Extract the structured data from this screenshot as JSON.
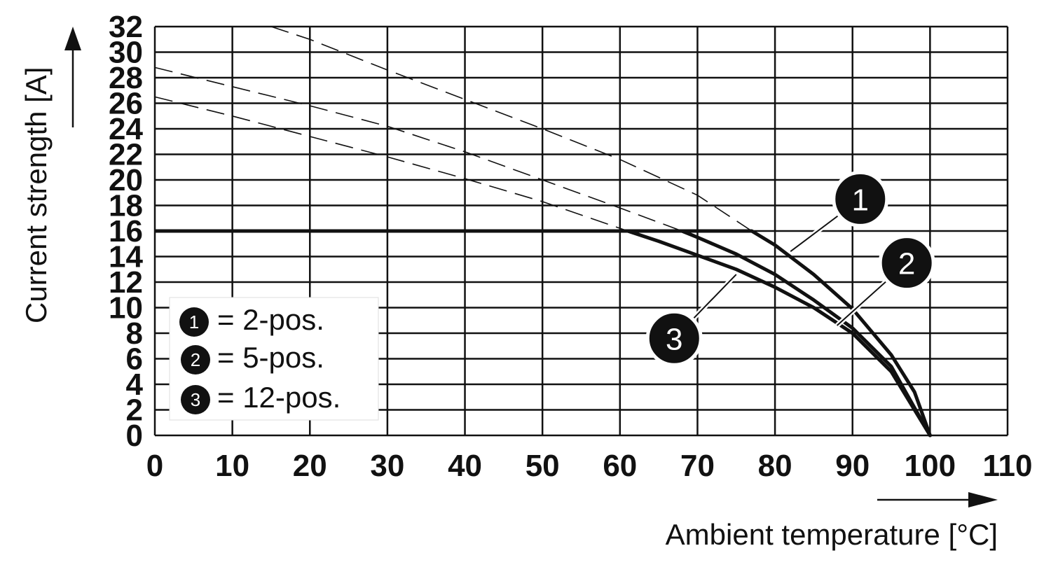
{
  "chart_data": {
    "type": "line",
    "xlabel": "Ambient temperature [°C]",
    "ylabel": "Current strength [A]",
    "xlim": [
      0,
      110
    ],
    "ylim": [
      0,
      32
    ],
    "xticks": [
      "0",
      "10",
      "20",
      "30",
      "40",
      "50",
      "60",
      "70",
      "80",
      "90",
      "100",
      "110"
    ],
    "yticks": [
      "0",
      "2",
      "4",
      "6",
      "8",
      "10",
      "12",
      "14",
      "16",
      "18",
      "20",
      "22",
      "24",
      "26",
      "28",
      "30",
      "32"
    ],
    "grid": true,
    "legend_position": "bottom-left",
    "legend": [
      {
        "marker": "1",
        "text": "= 2-pos."
      },
      {
        "marker": "2",
        "text": "= 5-pos."
      },
      {
        "marker": "3",
        "text": "= 12-pos."
      }
    ],
    "rated_current": {
      "style": "solid",
      "x": [
        0,
        77
      ],
      "y": [
        16,
        16
      ]
    },
    "series": [
      {
        "marker": "1",
        "solid": {
          "x": [
            77,
            80,
            85,
            90,
            95,
            98,
            100
          ],
          "y": [
            16,
            14.9,
            12.6,
            9.9,
            6.3,
            3.4,
            0
          ]
        },
        "dashed": {
          "x": [
            15,
            20,
            30,
            40,
            50,
            60,
            70,
            77
          ],
          "y": [
            32,
            31,
            28.6,
            26.3,
            24,
            21.6,
            18.8,
            16
          ]
        }
      },
      {
        "marker": "2",
        "solid": {
          "x": [
            68,
            70,
            75,
            80,
            85,
            90,
            95,
            100
          ],
          "y": [
            16,
            15.5,
            14.2,
            12.6,
            10.6,
            8.4,
            5.4,
            0
          ]
        },
        "dashed": {
          "x": [
            0,
            10,
            20,
            30,
            40,
            50,
            60,
            68
          ],
          "y": [
            28.8,
            27.3,
            25.8,
            24.2,
            22.2,
            20,
            17.8,
            16
          ]
        }
      },
      {
        "marker": "3",
        "solid": {
          "x": [
            61,
            65,
            70,
            75,
            80,
            85,
            90,
            95,
            100
          ],
          "y": [
            16,
            15.2,
            14.1,
            13,
            11.6,
            10,
            8,
            5,
            0
          ]
        },
        "dashed": {
          "x": [
            0,
            10,
            20,
            30,
            40,
            50,
            61
          ],
          "y": [
            26.5,
            25,
            23.4,
            21.8,
            20.1,
            18.3,
            16
          ]
        }
      }
    ],
    "callouts": [
      {
        "marker": "1",
        "target": [
          82,
          14.4
        ],
        "label_at": [
          91,
          18.5
        ]
      },
      {
        "marker": "2",
        "target": [
          88,
          8.6
        ],
        "label_at": [
          97,
          13.5
        ]
      },
      {
        "marker": "3",
        "target": [
          75,
          12.6
        ],
        "label_at": [
          67,
          7.6
        ]
      }
    ]
  }
}
